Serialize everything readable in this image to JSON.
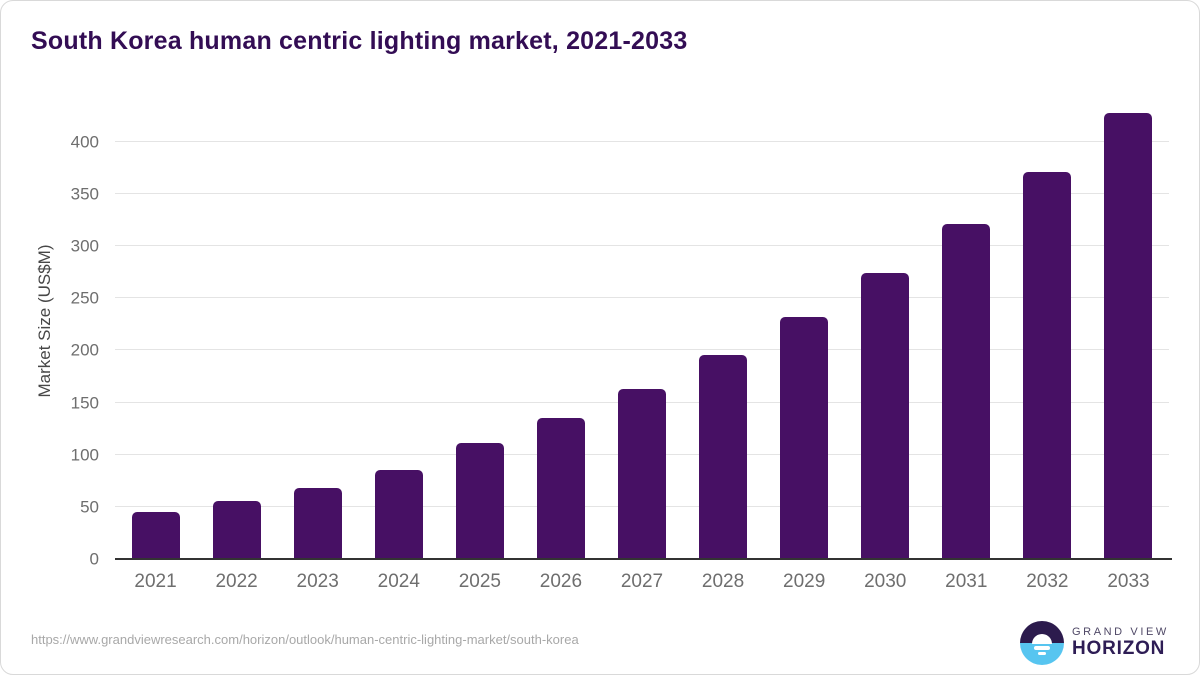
{
  "title": "South Korea human centric lighting market, 2021-2033",
  "source_url": "https://www.grandviewresearch.com/horizon/outlook/human-centric-lighting-market/south-korea",
  "logo": {
    "line1": "GRAND VIEW",
    "line2": "HORIZON"
  },
  "colors": {
    "title_text": "#330d54",
    "bar": "#471064",
    "axis_text": "#6e6e6e",
    "axis_title_text": "#474747",
    "gridline": "#e4e4e4",
    "baseline": "#333333",
    "url_text": "#a8a8a8",
    "logo_navy": "#2c1b4d",
    "logo_blue": "#57c5f0"
  },
  "chart_data": {
    "type": "bar",
    "title": "South Korea human centric lighting market, 2021-2033",
    "categories": [
      "2021",
      "2022",
      "2023",
      "2024",
      "2025",
      "2026",
      "2027",
      "2028",
      "2029",
      "2030",
      "2031",
      "2032",
      "2033"
    ],
    "values": [
      45,
      56,
      68,
      85,
      111,
      135,
      163,
      196,
      232,
      274,
      321,
      371,
      428
    ],
    "xlabel": "",
    "ylabel": "Market Size (US$M)",
    "ylim": [
      0,
      440
    ],
    "yticks": [
      0,
      50,
      100,
      150,
      200,
      250,
      300,
      350,
      400
    ],
    "grid": "horizontal-light",
    "legend": "none",
    "bar_color": "#471064"
  }
}
